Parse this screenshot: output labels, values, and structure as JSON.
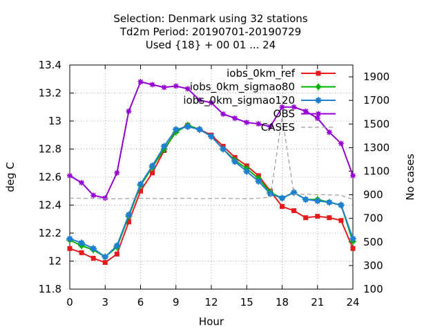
{
  "chart_data": {
    "type": "line",
    "title_lines": [
      "Selection: Denmark using    32 stations",
      "Td2m   Period: 20190701-20190729",
      "Used {18} + 00 01 ... 24"
    ],
    "xlabel": "Hour",
    "ylabel": "deg C",
    "y2label": "No cases",
    "xlim": [
      0,
      24
    ],
    "ylim": [
      11.8,
      13.4
    ],
    "y2lim": [
      100,
      2000
    ],
    "xticks": [
      0,
      3,
      6,
      9,
      12,
      15,
      18,
      21,
      24
    ],
    "yticks": [
      11.8,
      12,
      12.2,
      12.4,
      12.6,
      12.8,
      13,
      13.2,
      13.4
    ],
    "yticklabels": [
      "11.8",
      "12",
      "12.2",
      "12.4",
      "12.6",
      "12.8",
      "13",
      "13.2",
      "13.4"
    ],
    "y2ticks": [
      100,
      300,
      500,
      700,
      900,
      1100,
      1300,
      1500,
      1700,
      1900
    ],
    "grid": true,
    "legend_position": "top-right",
    "x": [
      0,
      1,
      2,
      3,
      4,
      5,
      6,
      7,
      8,
      9,
      10,
      11,
      12,
      13,
      14,
      15,
      16,
      17,
      18,
      19,
      20,
      21,
      22,
      23,
      24
    ],
    "series": [
      {
        "name": "iobs_0km_ref",
        "color": "#e41a1c",
        "marker": "square",
        "axis": "y",
        "values": [
          12.09,
          12.06,
          12.02,
          11.99,
          12.05,
          12.28,
          12.5,
          12.63,
          12.79,
          12.93,
          12.97,
          12.94,
          12.9,
          12.82,
          12.74,
          12.68,
          12.61,
          12.5,
          12.39,
          12.36,
          12.31,
          12.32,
          12.31,
          12.29,
          12.09
        ]
      },
      {
        "name": "iobs_0km_sigmao80",
        "color": "#00b000",
        "marker": "plus-circle",
        "axis": "y",
        "values": [
          12.15,
          12.11,
          12.08,
          12.03,
          12.1,
          12.32,
          12.54,
          12.67,
          12.8,
          12.92,
          12.97,
          12.94,
          12.89,
          12.8,
          12.72,
          12.66,
          12.59,
          12.49,
          12.45,
          12.49,
          12.44,
          12.44,
          12.42,
          12.4,
          12.14
        ]
      },
      {
        "name": "iobs_0km_sigmao120",
        "color": "#1f7fd0",
        "marker": "diamond",
        "axis": "y",
        "values": [
          12.16,
          12.13,
          12.09,
          12.03,
          12.11,
          12.33,
          12.55,
          12.68,
          12.82,
          12.94,
          12.96,
          12.94,
          12.89,
          12.8,
          12.71,
          12.64,
          12.57,
          12.48,
          12.45,
          12.49,
          12.44,
          12.43,
          12.42,
          12.4,
          12.16
        ]
      },
      {
        "name": "OBS",
        "color": "#9400d3",
        "marker": "star",
        "axis": "y",
        "values": [
          12.61,
          12.56,
          12.47,
          12.45,
          12.63,
          13.07,
          13.28,
          13.26,
          13.24,
          13.25,
          13.23,
          13.15,
          13.13,
          13.05,
          13.02,
          12.99,
          12.98,
          12.96,
          13.1,
          13.1,
          13.07,
          13.02,
          12.92,
          12.84,
          12.61
        ]
      },
      {
        "name": "CASES",
        "color": "#9a9a9a",
        "marker": "none",
        "axis": "y2",
        "dashed": true,
        "values": [
          870,
          870,
          868,
          866,
          865,
          868,
          870,
          868,
          866,
          868,
          870,
          866,
          868,
          870,
          868,
          866,
          870,
          880,
          1560,
          905,
          905,
          900,
          900,
          895,
          860
        ]
      }
    ]
  }
}
